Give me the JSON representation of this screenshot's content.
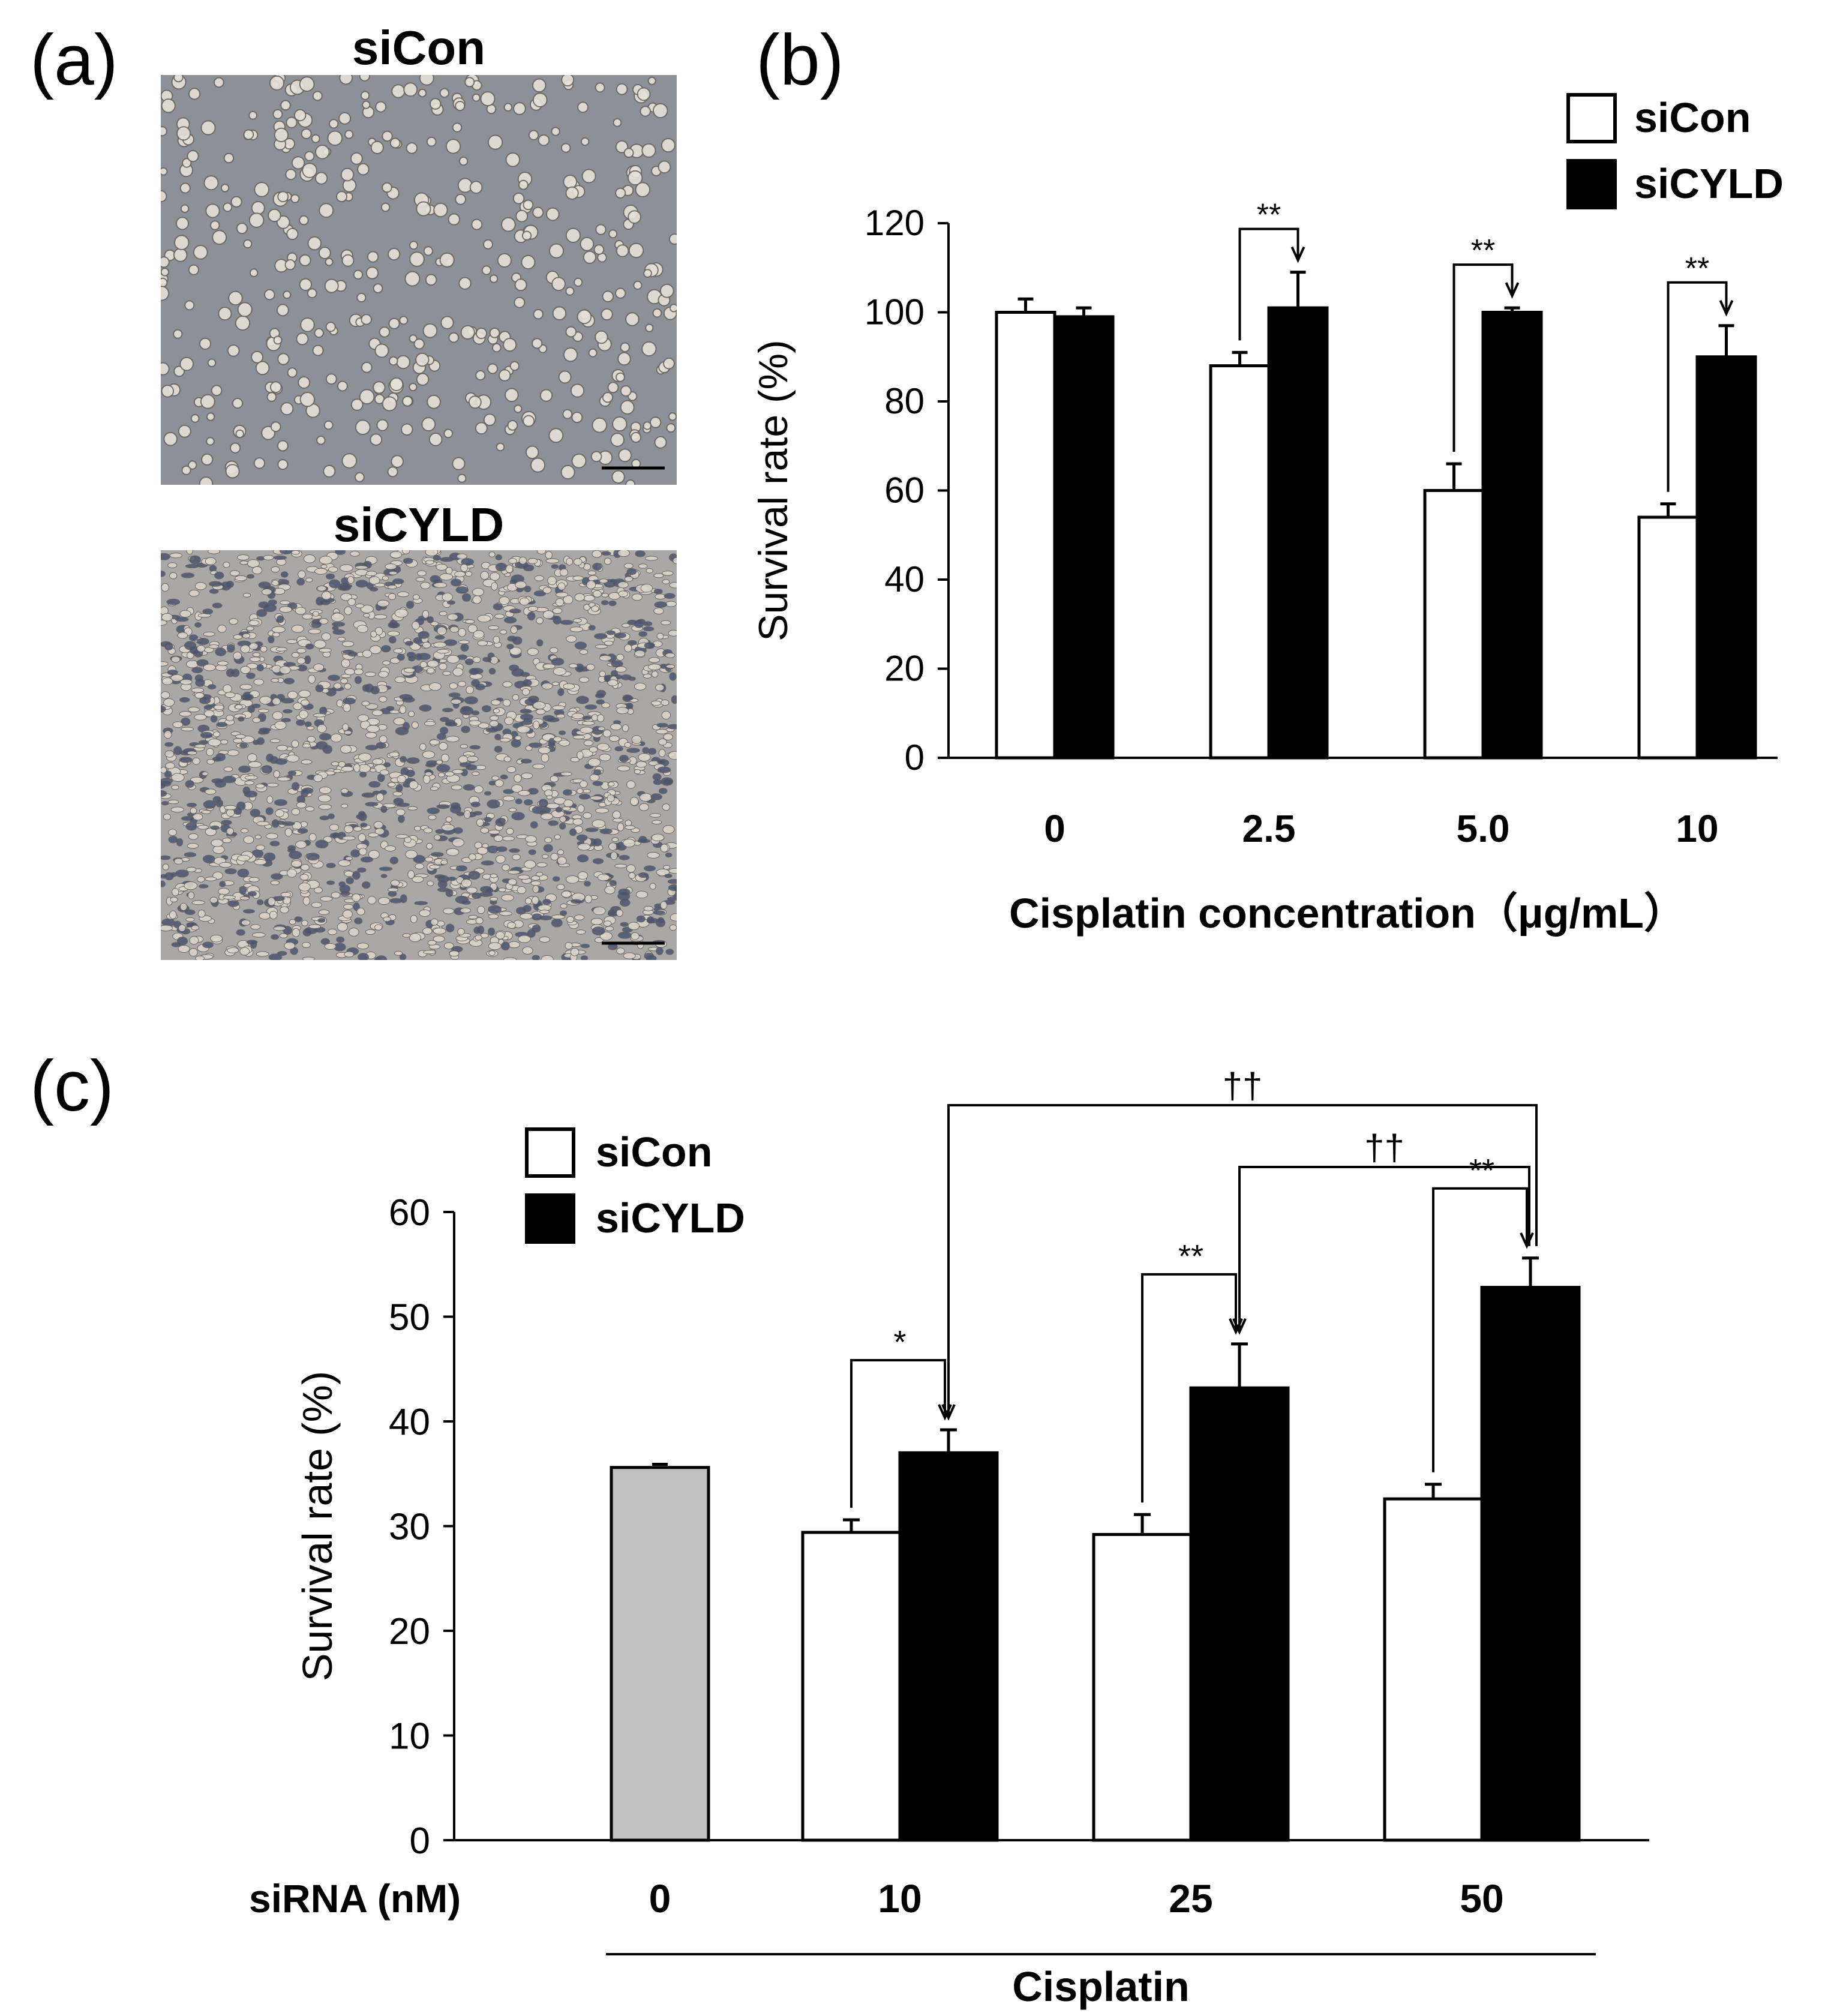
{
  "panels": {
    "a": {
      "label": "(a)",
      "images": [
        {
          "title": "siCon",
          "kind": "sparse-cells"
        },
        {
          "title": "siCYLD",
          "kind": "dense-cells"
        }
      ]
    },
    "b": {
      "label": "(b)"
    },
    "c": {
      "label": "(c)"
    }
  },
  "colors": {
    "siCon": "#ffffff",
    "siCYLD": "#000000",
    "control": "#c0c0c0",
    "micro_bg": "#8c9098",
    "micro_cell": "#e6e1d8"
  },
  "chart_data": [
    {
      "type": "bar",
      "panel": "b",
      "categories": [
        "0",
        "2.5",
        "5.0",
        "10"
      ],
      "series": [
        {
          "name": "siCon",
          "values": [
            100,
            88,
            60,
            54
          ],
          "errors": [
            3,
            3,
            6,
            3
          ]
        },
        {
          "name": "siCYLD",
          "values": [
            99,
            101,
            100,
            90
          ],
          "errors": [
            2,
            8,
            1,
            7
          ]
        }
      ],
      "xlabel": "Cisplatin concentration（μg/mL）",
      "ylabel": "Survival rate (%)",
      "ylim": [
        0,
        120
      ],
      "yticks": [
        0,
        20,
        40,
        60,
        80,
        100,
        120
      ],
      "legend": "top-right",
      "significance": [
        {
          "category": "2.5",
          "label": "**"
        },
        {
          "category": "5.0",
          "label": "**"
        },
        {
          "category": "10",
          "label": "**"
        }
      ]
    },
    {
      "type": "bar",
      "panel": "c",
      "categories": [
        "0",
        "10",
        "25",
        "50"
      ],
      "xlabel_prefix": "siRNA (nM)",
      "group_label": "Cisplatin",
      "control": {
        "category": "0",
        "value": 35.6,
        "error": 0.3
      },
      "series": [
        {
          "name": "siCon",
          "values": [
            null,
            29.4,
            29.2,
            32.6
          ],
          "errors": [
            null,
            1.2,
            1.9,
            1.4
          ]
        },
        {
          "name": "siCYLD",
          "values": [
            null,
            37.0,
            43.2,
            52.8
          ],
          "errors": [
            null,
            2.2,
            4.2,
            2.8
          ]
        }
      ],
      "ylabel": "Survival rate (%)",
      "ylim": [
        0,
        60
      ],
      "yticks": [
        0,
        10,
        20,
        30,
        40,
        50,
        60
      ],
      "legend": "top-left",
      "significance": [
        {
          "category": "10",
          "label": "*"
        },
        {
          "category": "25",
          "label": "**"
        },
        {
          "category": "50",
          "label": "**"
        }
      ],
      "cross_significance": [
        {
          "from": "10",
          "to": "50",
          "label": "††"
        },
        {
          "from": "25",
          "to": "50",
          "label": "††"
        }
      ]
    }
  ]
}
